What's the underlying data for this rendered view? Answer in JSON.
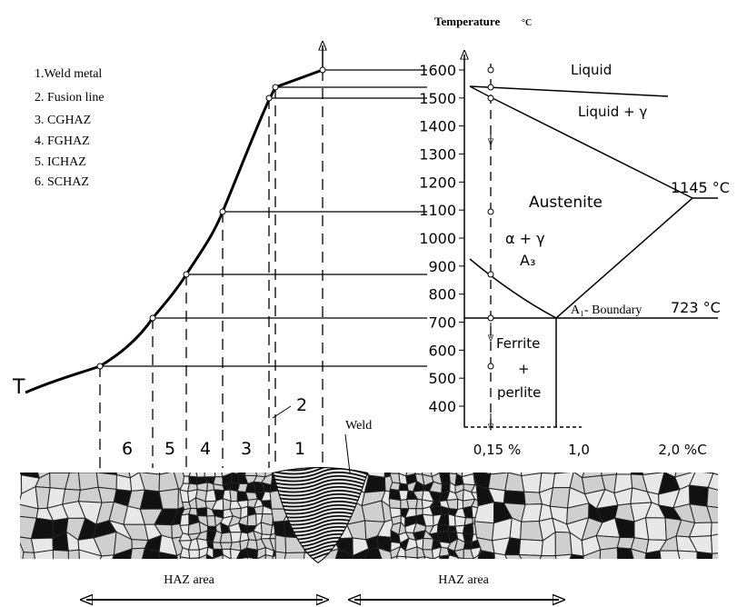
{
  "legend": [
    "1.Weld metal",
    "2. Fusion line",
    "3. CGHAZ",
    "4. FGHAZ",
    "5. ICHAZ",
    "6. SCHAZ"
  ],
  "axis_title": "Temperature",
  "axis_unit": "°C",
  "ticks": [
    "1600",
    "1500",
    "1400",
    "1300",
    "1200",
    "1100",
    "1000",
    "900",
    "800",
    "700",
    "600",
    "500",
    "400"
  ],
  "curve_label": "T",
  "zones": [
    "6",
    "5",
    "4",
    "3",
    "1"
  ],
  "fusion_label": "2",
  "phases": {
    "liquid": "Liquid",
    "liquid_gamma": "Liquid + γ",
    "austenite": "Austenite",
    "alpha_gamma": "α + γ",
    "a3": "A₃",
    "ferrite": "Ferrite",
    "plus": "+",
    "perlite": "perlite",
    "a1": "A₁- Boundary"
  },
  "temps": [
    "1145 °C",
    "723 °C"
  ],
  "x_labels": [
    "0,15 %",
    "1,0",
    "2,0 %C"
  ],
  "weld": "Weld",
  "haz": [
    "HAZ area",
    "HAZ area"
  ]
}
